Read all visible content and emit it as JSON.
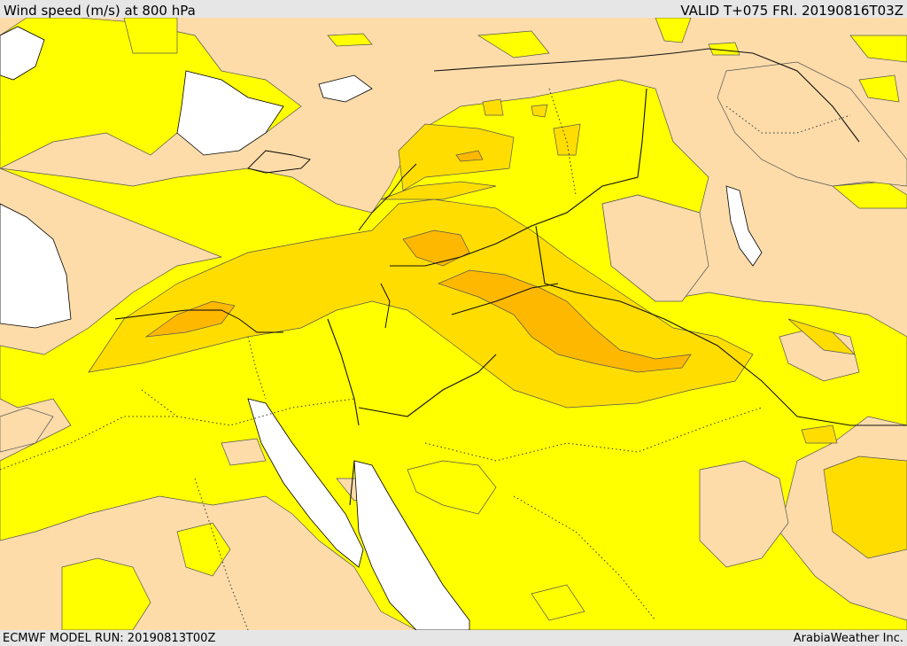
{
  "header": {
    "title": "Wind speed (m/s) at 800 hPa",
    "valid": "VALID T+075 FRI. 20190816T03Z"
  },
  "footer": {
    "model_run": "ECMWF MODEL RUN: 20190813T00Z",
    "credit": "ArabiaWeather Inc."
  },
  "colors": {
    "land_calm": "#fddcaa",
    "wind_low": "#ffff00",
    "wind_mid": "#ffdd00",
    "wind_high": "#ffb800",
    "water": "#ffffff",
    "border": "#000000"
  }
}
